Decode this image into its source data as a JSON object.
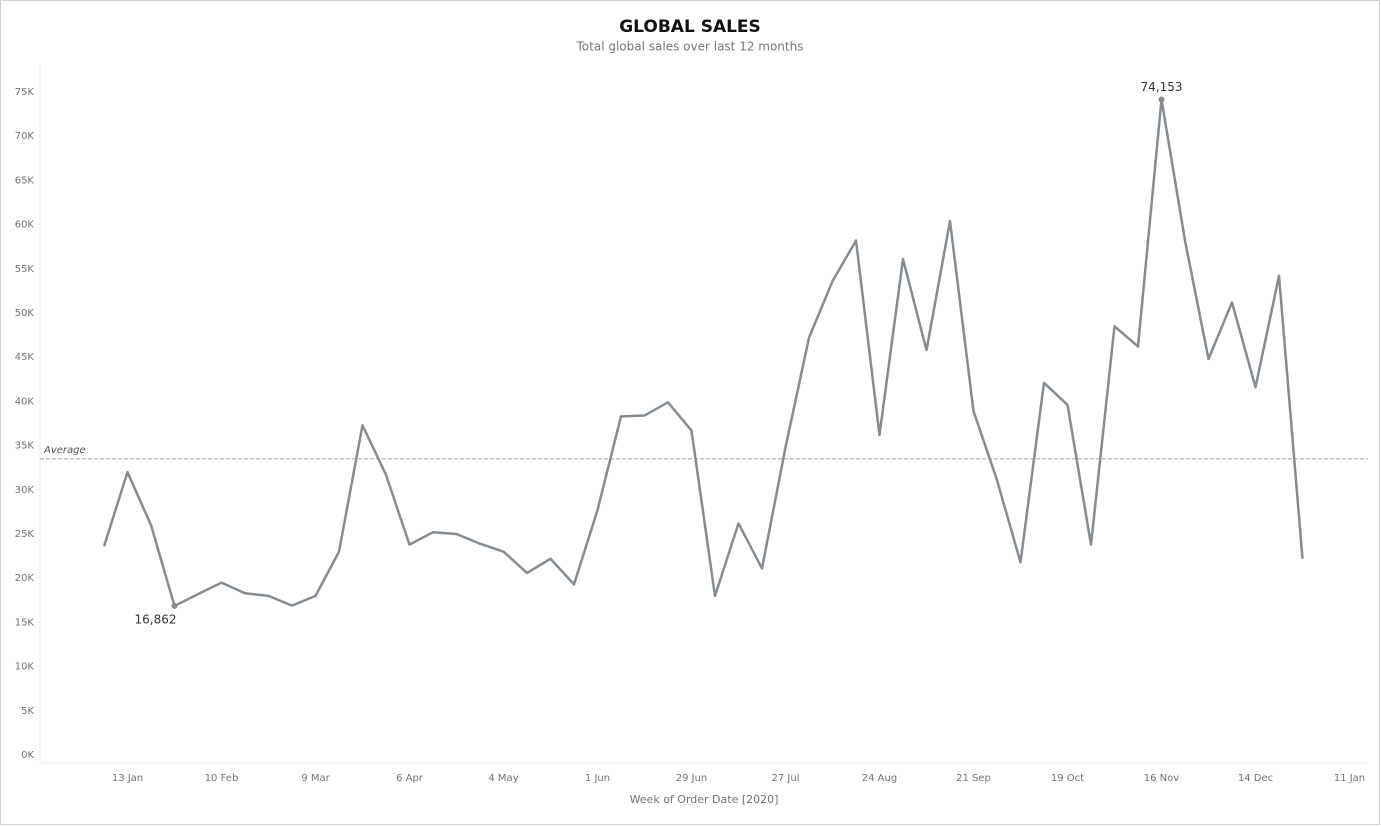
{
  "chart_data": {
    "type": "line",
    "title": "GLOBAL SALES",
    "subtitle": "Total global sales over last 12 months",
    "x_label": "Week of Order Date [2020]",
    "categories": [
      null,
      "13 Jan",
      null,
      null,
      null,
      "10 Feb",
      null,
      null,
      null,
      "9 Mar",
      null,
      null,
      null,
      "6 Apr",
      null,
      null,
      null,
      "4 May",
      null,
      null,
      null,
      "1 Jun",
      null,
      null,
      null,
      "29 Jun",
      null,
      null,
      null,
      "27 Jul",
      null,
      null,
      null,
      "24 Aug",
      null,
      null,
      null,
      "21 Sep",
      null,
      null,
      null,
      "19 Oct",
      null,
      null,
      null,
      "16 Nov",
      null,
      null,
      null,
      "14 Dec",
      null,
      null,
      null,
      "11 Jan"
    ],
    "series": [
      {
        "name": "Sales",
        "color": "#858c92",
        "values": [
          23600,
          32000,
          26000,
          16862,
          18200,
          19500,
          18300,
          18000,
          16900,
          18000,
          23000,
          37300,
          31700,
          23800,
          25200,
          25000,
          23900,
          23000,
          20600,
          22200,
          19300,
          27700,
          38300,
          38400,
          39900,
          36700,
          18000,
          26200,
          21100,
          34800,
          47200,
          53600,
          58200,
          36200,
          56100,
          45800,
          60400,
          38900,
          31100,
          21800,
          42100,
          39600,
          23800,
          48500,
          46200,
          74153,
          58200,
          44800,
          51200,
          41600,
          54200,
          22200,
          null,
          null
        ],
        "value_labels": [
          null,
          null,
          null,
          "16,862",
          null,
          null,
          null,
          null,
          null,
          null,
          null,
          null,
          null,
          null,
          null,
          null,
          null,
          null,
          null,
          null,
          null,
          null,
          null,
          null,
          null,
          null,
          null,
          null,
          null,
          null,
          null,
          null,
          null,
          null,
          null,
          null,
          null,
          null,
          null,
          null,
          null,
          null,
          null,
          null,
          null,
          "74,153",
          null,
          null,
          null,
          null,
          null,
          null,
          null,
          null
        ]
      }
    ],
    "reference_line": {
      "label": "Average",
      "value": 33500,
      "color": "#9aa0a5"
    },
    "ylim": [
      0,
      75000
    ],
    "yticks": [
      {
        "value": 0,
        "label": "0K"
      },
      {
        "value": 5000,
        "label": "5K"
      },
      {
        "value": 10000,
        "label": "10K"
      },
      {
        "value": 15000,
        "label": "15K"
      },
      {
        "value": 20000,
        "label": "20K"
      },
      {
        "value": 25000,
        "label": "25K"
      },
      {
        "value": 30000,
        "label": "30K"
      },
      {
        "value": 35000,
        "label": "35K"
      },
      {
        "value": 40000,
        "label": "40K"
      },
      {
        "value": 45000,
        "label": "45K"
      },
      {
        "value": 50000,
        "label": "50K"
      },
      {
        "value": 55000,
        "label": "55K"
      },
      {
        "value": 60000,
        "label": "60K"
      },
      {
        "value": 65000,
        "label": "65K"
      },
      {
        "value": 70000,
        "label": "70K"
      },
      {
        "value": 75000,
        "label": "75K"
      }
    ],
    "grid": false
  }
}
